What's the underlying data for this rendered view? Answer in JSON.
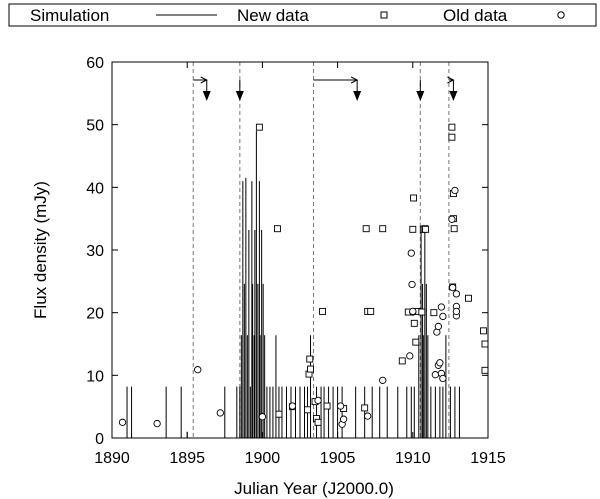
{
  "chart_data": {
    "type": "scatter",
    "title": "",
    "xlabel": "Julian Year (J2000.0)",
    "ylabel": "Flux density (mJy)",
    "xlim": [
      1890,
      1915
    ],
    "ylim": [
      0,
      60
    ],
    "xticks": [
      1890,
      1895,
      1900,
      1905,
      1910,
      1915
    ],
    "xtick_labels": [
      "1890",
      "1895",
      "1900",
      "1905",
      "1910",
      "1915"
    ],
    "yticks": [
      0,
      10,
      20,
      30,
      40,
      50,
      60
    ],
    "ytick_labels": [
      "0",
      "10",
      "20",
      "30",
      "40",
      "50",
      "60"
    ],
    "legend": {
      "placement": "top",
      "entries": [
        {
          "label": "Simulation",
          "marker": "line"
        },
        {
          "label": "New data",
          "marker": "square"
        },
        {
          "label": "Old data",
          "marker": "circle"
        }
      ]
    },
    "vertical_dashed_lines": [
      1895.4,
      1898.5,
      1903.4,
      1910.5,
      1912.4
    ],
    "arrows": [
      {
        "from": 1895.4,
        "to": 1896.3
      },
      {
        "from": 1898.5,
        "to": 1898.5
      },
      {
        "from": 1903.4,
        "to": 1906.3
      },
      {
        "from": 1910.5,
        "to": 1910.5
      },
      {
        "from": 1912.4,
        "to": 1912.7
      }
    ],
    "simulation_spikes": [
      [
        1891.0,
        8.2
      ],
      [
        1891.3,
        8.2
      ],
      [
        1893.6,
        8.2
      ],
      [
        1894.6,
        8.2
      ],
      [
        1895.0,
        1.0
      ],
      [
        1897.5,
        8.2
      ],
      [
        1898.3,
        8.2
      ],
      [
        1898.5,
        8.2
      ],
      [
        1898.6,
        16.4
      ],
      [
        1898.7,
        41.0
      ],
      [
        1898.8,
        24.6
      ],
      [
        1898.9,
        41.5
      ],
      [
        1899.0,
        16.4
      ],
      [
        1899.1,
        33.2
      ],
      [
        1899.2,
        8.2
      ],
      [
        1899.3,
        41.0
      ],
      [
        1899.35,
        24.6
      ],
      [
        1899.45,
        16.4
      ],
      [
        1899.5,
        33.2
      ],
      [
        1899.6,
        49.0
      ],
      [
        1899.7,
        24.6
      ],
      [
        1899.8,
        41.0
      ],
      [
        1899.85,
        16.4
      ],
      [
        1899.95,
        33.2
      ],
      [
        1900.05,
        24.6
      ],
      [
        1900.15,
        16.4
      ],
      [
        1900.3,
        8.2
      ],
      [
        1900.5,
        8.2
      ],
      [
        1900.7,
        8.2
      ],
      [
        1900.9,
        16.4
      ],
      [
        1901.1,
        8.2
      ],
      [
        1901.3,
        8.2
      ],
      [
        1901.6,
        8.2
      ],
      [
        1901.9,
        8.2
      ],
      [
        1902.2,
        8.2
      ],
      [
        1902.5,
        8.2
      ],
      [
        1902.8,
        8.2
      ],
      [
        1903.0,
        8.2
      ],
      [
        1903.2,
        16.4
      ],
      [
        1903.6,
        8.2
      ],
      [
        1903.9,
        8.2
      ],
      [
        1904.1,
        8.2
      ],
      [
        1904.4,
        8.2
      ],
      [
        1904.7,
        8.2
      ],
      [
        1905.0,
        8.2
      ],
      [
        1905.3,
        8.2
      ],
      [
        1906.2,
        8.2
      ],
      [
        1906.8,
        8.2
      ],
      [
        1907.3,
        8.2
      ],
      [
        1907.8,
        8.2
      ],
      [
        1908.3,
        8.2
      ],
      [
        1909.0,
        8.2
      ],
      [
        1909.6,
        8.2
      ],
      [
        1909.9,
        8.2
      ],
      [
        1910.1,
        8.2
      ],
      [
        1910.4,
        16.4
      ],
      [
        1910.55,
        33.2
      ],
      [
        1910.65,
        24.6
      ],
      [
        1910.7,
        16.4
      ],
      [
        1910.8,
        33.0
      ],
      [
        1910.9,
        24.6
      ],
      [
        1911.0,
        16.4
      ],
      [
        1911.2,
        8.2
      ],
      [
        1911.5,
        8.2
      ],
      [
        1911.8,
        8.2
      ],
      [
        1912.0,
        8.2
      ],
      [
        1912.2,
        16.4
      ],
      [
        1912.5,
        8.2
      ],
      [
        1912.8,
        8.2
      ],
      [
        1913.1,
        8.2
      ]
    ],
    "new_data": [
      [
        1899.8,
        49.6
      ],
      [
        1901.0,
        33.4
      ],
      [
        1901.1,
        3.8
      ],
      [
        1902.0,
        5.0
      ],
      [
        1903.0,
        4.5
      ],
      [
        1903.1,
        10.2
      ],
      [
        1903.15,
        12.6
      ],
      [
        1903.2,
        11.0
      ],
      [
        1903.5,
        5.8
      ],
      [
        1903.6,
        3.1
      ],
      [
        1903.7,
        2.5
      ],
      [
        1904.0,
        20.2
      ],
      [
        1904.3,
        5.1
      ],
      [
        1905.4,
        4.7
      ],
      [
        1906.8,
        4.8
      ],
      [
        1906.9,
        33.4
      ],
      [
        1907.0,
        20.2
      ],
      [
        1907.2,
        20.2
      ],
      [
        1908.0,
        33.4
      ],
      [
        1909.3,
        12.3
      ],
      [
        1909.7,
        20.1
      ],
      [
        1910.0,
        33.3
      ],
      [
        1910.05,
        38.3
      ],
      [
        1910.1,
        18.3
      ],
      [
        1910.2,
        15.3
      ],
      [
        1910.3,
        20.2
      ],
      [
        1910.6,
        20.1
      ],
      [
        1910.7,
        33.3
      ],
      [
        1910.8,
        33.4
      ],
      [
        1910.85,
        33.3
      ],
      [
        1911.4,
        20.0
      ],
      [
        1912.6,
        49.6
      ],
      [
        1912.6,
        48.0
      ],
      [
        1912.65,
        24.1
      ],
      [
        1912.7,
        39.0
      ],
      [
        1912.75,
        33.4
      ],
      [
        1912.7,
        35.0
      ],
      [
        1913.7,
        22.3
      ],
      [
        1914.7,
        17.1
      ],
      [
        1914.8,
        15.0
      ],
      [
        1914.8,
        10.8
      ]
    ],
    "old_data": [
      [
        1890.7,
        2.5
      ],
      [
        1893.0,
        2.3
      ],
      [
        1895.7,
        10.9
      ],
      [
        1897.2,
        4.0
      ],
      [
        1900.0,
        3.4
      ],
      [
        1902.0,
        5.1
      ],
      [
        1903.7,
        6.0
      ],
      [
        1905.3,
        2.2
      ],
      [
        1905.4,
        3.0
      ],
      [
        1905.2,
        5.1
      ],
      [
        1907.0,
        3.5
      ],
      [
        1908.0,
        9.2
      ],
      [
        1909.8,
        13.1
      ],
      [
        1909.9,
        29.5
      ],
      [
        1909.95,
        24.5
      ],
      [
        1910.0,
        20.1
      ],
      [
        1911.5,
        10.1
      ],
      [
        1911.6,
        16.9
      ],
      [
        1911.7,
        11.6
      ],
      [
        1911.8,
        12.0
      ],
      [
        1911.9,
        10.3
      ],
      [
        1912.0,
        9.5
      ],
      [
        1912.0,
        19.4
      ],
      [
        1911.7,
        17.8
      ],
      [
        1912.6,
        34.9
      ],
      [
        1912.65,
        24.0
      ],
      [
        1912.8,
        39.5
      ],
      [
        1912.9,
        23.0
      ],
      [
        1912.9,
        21.0
      ],
      [
        1912.9,
        19.5
      ],
      [
        1912.9,
        20.2
      ],
      [
        1911.9,
        20.9
      ],
      [
        1910.0,
        20.2
      ]
    ]
  }
}
